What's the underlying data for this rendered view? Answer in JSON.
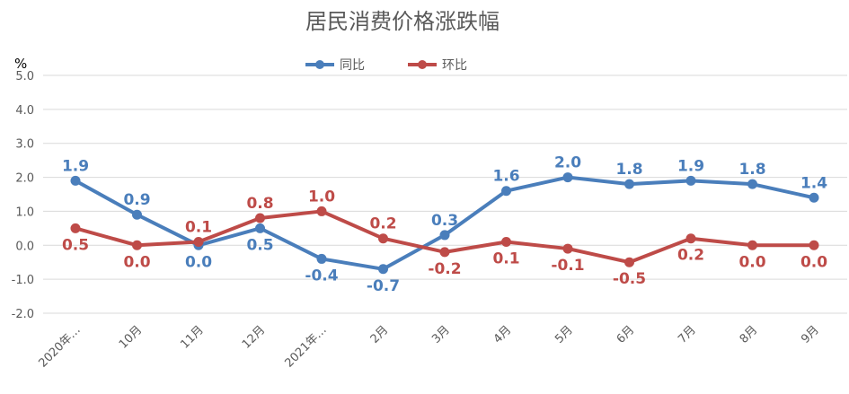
{
  "chart_data": {
    "type": "line",
    "title": "居民消费价格涨跌幅",
    "unit_label": "%",
    "categories": [
      "2020年…",
      "10月",
      "11月",
      "12月",
      "2021年…",
      "2月",
      "3月",
      "4月",
      "5月",
      "6月",
      "7月",
      "8月",
      "9月"
    ],
    "ylim": [
      -2.0,
      5.0
    ],
    "yticks": [
      "5.0",
      "4.0",
      "3.0",
      "2.0",
      "1.0",
      "0.0",
      "-1.0",
      "-2.0"
    ],
    "grid": true,
    "legend_position": "top-center",
    "series": [
      {
        "name": "同比",
        "color": "#4a7ebb",
        "values": [
          1.9,
          0.9,
          0.0,
          0.5,
          -0.4,
          -0.7,
          0.3,
          1.6,
          2.0,
          1.8,
          1.9,
          1.8,
          1.4
        ],
        "labels": [
          "1.9",
          "0.9",
          "0.0",
          "0.5",
          "-0.4",
          "-0.7",
          "0.3",
          "1.6",
          "2.0",
          "1.8",
          "1.9",
          "1.8",
          "1.4"
        ]
      },
      {
        "name": "环比",
        "color": "#be4b48",
        "values": [
          0.5,
          0.0,
          0.1,
          0.8,
          1.0,
          0.2,
          -0.2,
          0.1,
          -0.1,
          -0.5,
          0.2,
          0.0,
          0.0
        ],
        "labels": [
          "0.5",
          "0.0",
          "0.1",
          "0.8",
          "1.0",
          "0.2",
          "-0.2",
          "0.1",
          "-0.1",
          "-0.5",
          "0.2",
          "0.0",
          "0.0"
        ]
      }
    ]
  }
}
